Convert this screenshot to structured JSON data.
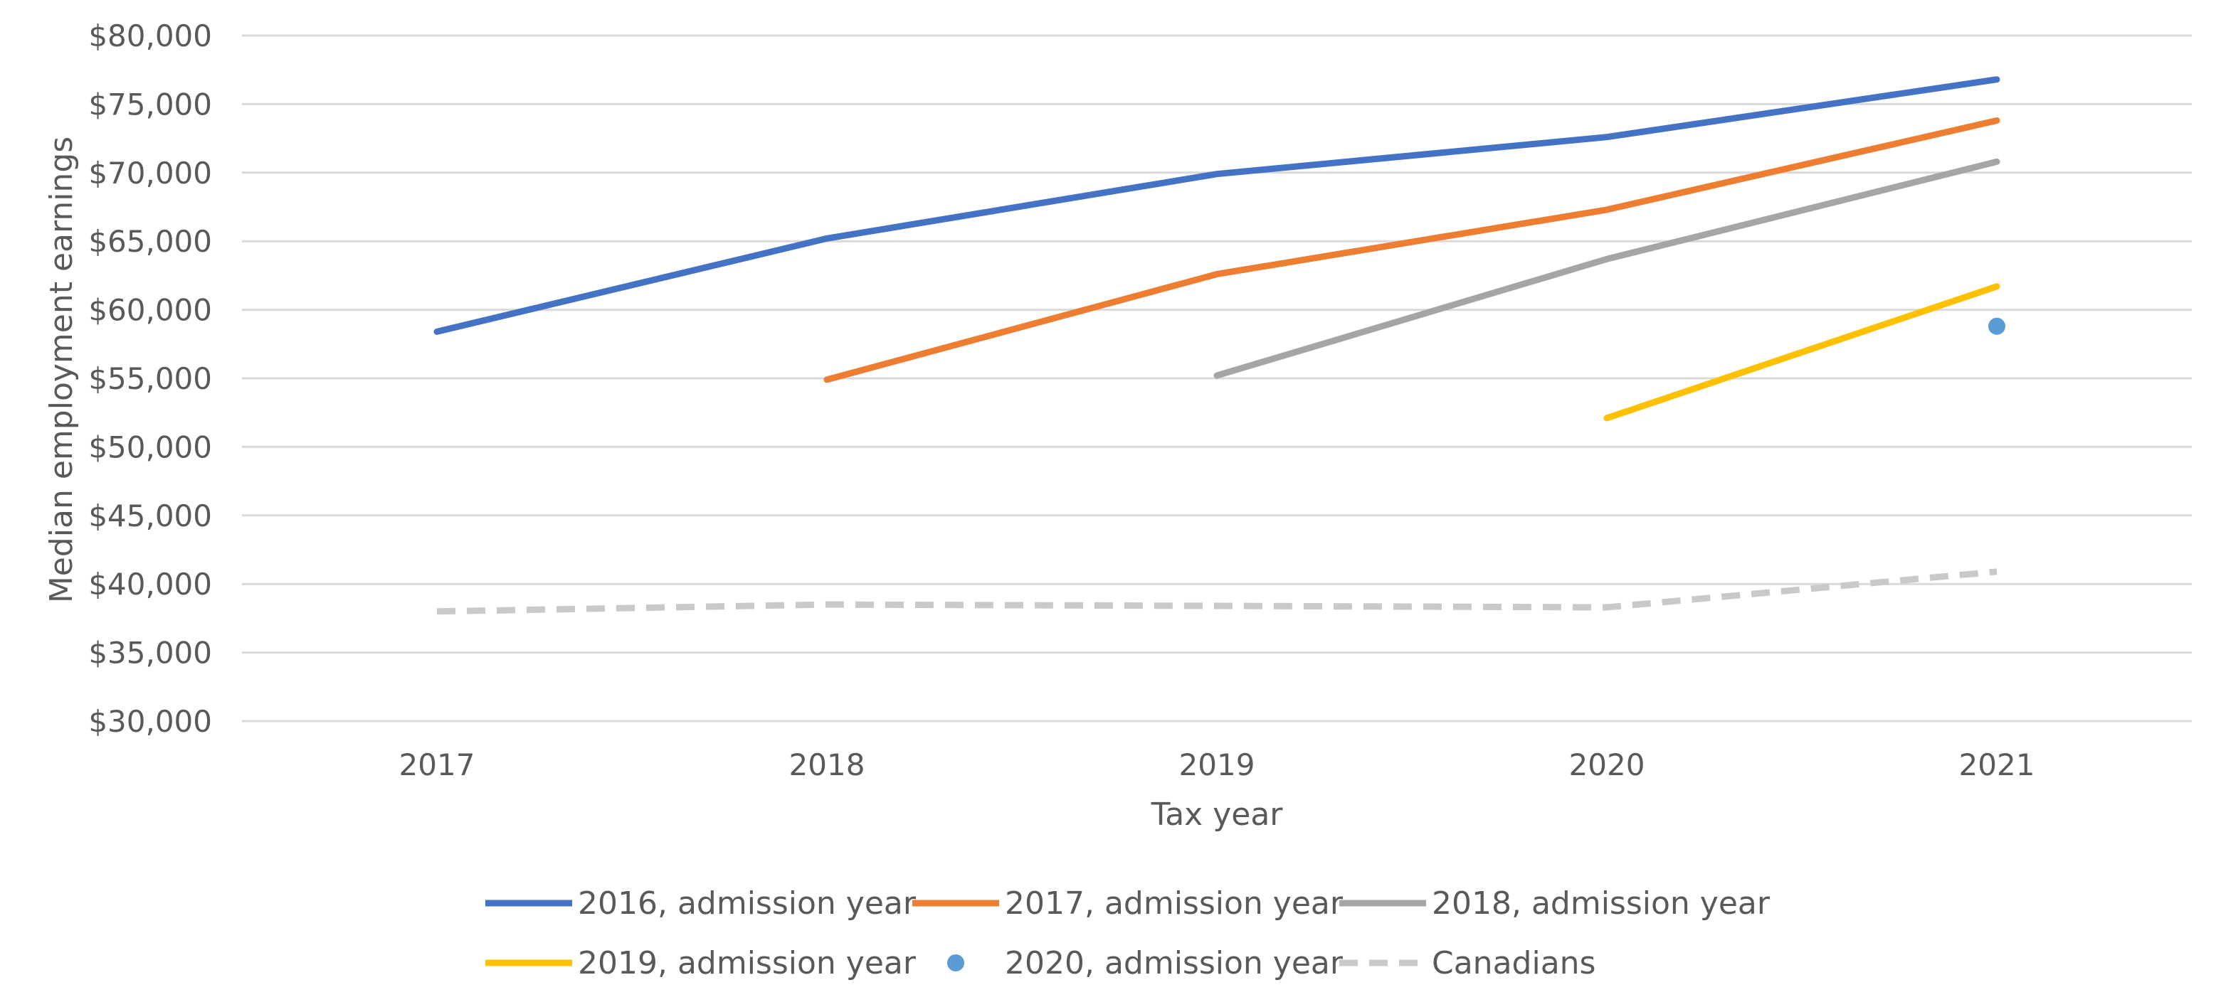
{
  "chart_data": {
    "type": "line",
    "title": "",
    "xlabel": "Tax year",
    "ylabel": "Median employment earnings",
    "categories": [
      "2017",
      "2018",
      "2019",
      "2020",
      "2021"
    ],
    "ylim": [
      30000,
      80000
    ],
    "ytick_values": [
      30000,
      35000,
      40000,
      45000,
      50000,
      55000,
      60000,
      65000,
      70000,
      75000,
      80000
    ],
    "ytick_labels": [
      "$30,000",
      "$35,000",
      "$40,000",
      "$45,000",
      "$50,000",
      "$55,000",
      "$60,000",
      "$65,000",
      "$70,000",
      "$75,000",
      "$80,000"
    ],
    "grid": true,
    "legend_position": "bottom",
    "series": [
      {
        "name": "2016, admission year",
        "style": "line",
        "color": "#4472C4",
        "values": [
          58400,
          65200,
          69900,
          72600,
          76800
        ]
      },
      {
        "name": "2017, admission year",
        "style": "line",
        "color": "#ED7D31",
        "values": [
          null,
          54900,
          62600,
          67300,
          73800
        ]
      },
      {
        "name": "2018, admission year",
        "style": "line",
        "color": "#A5A5A5",
        "values": [
          null,
          null,
          55200,
          63700,
          70800
        ]
      },
      {
        "name": "2019, admission year",
        "style": "line",
        "color": "#FFC000",
        "values": [
          null,
          null,
          null,
          52100,
          61700
        ]
      },
      {
        "name": "2020, admission year",
        "style": "marker",
        "color": "#5B9BD5",
        "values": [
          null,
          null,
          null,
          null,
          58800
        ]
      },
      {
        "name": "Canadians",
        "style": "dashed",
        "color": "#C9C9C9",
        "values": [
          38000,
          38500,
          38400,
          38300,
          40900
        ]
      }
    ]
  }
}
